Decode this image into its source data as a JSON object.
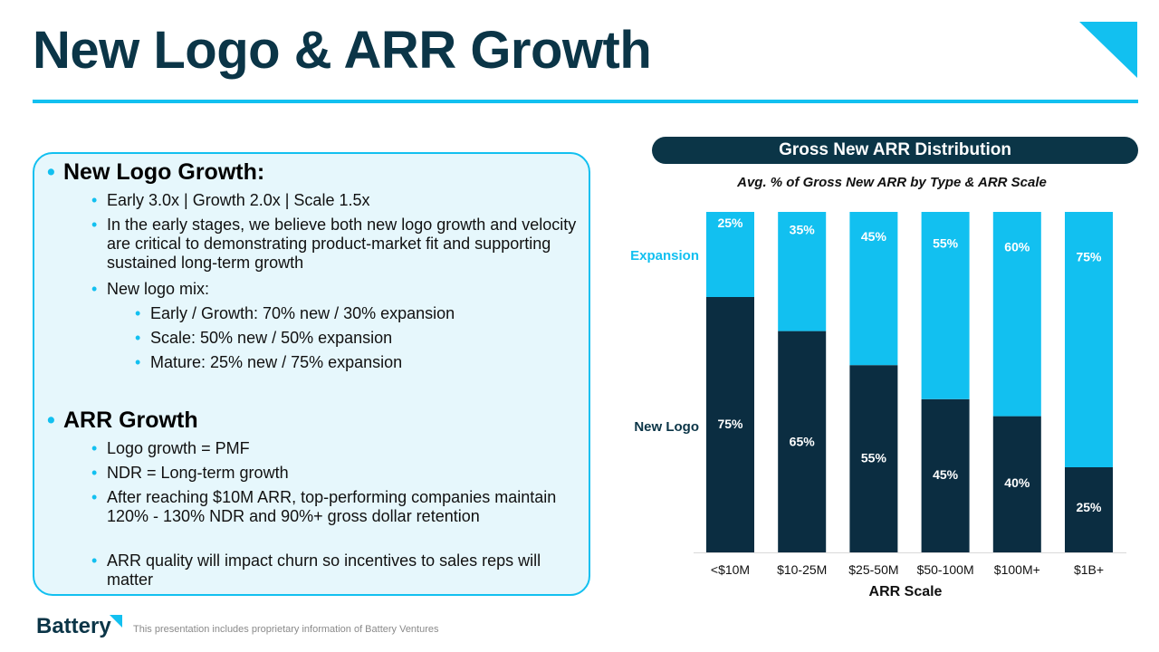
{
  "title": "New Logo & ARR Growth",
  "colors": {
    "accent": "#12c0f0",
    "navy": "#0b3547",
    "expansion": "#12c0f0",
    "new_logo": "#0b2d41"
  },
  "left_panel": {
    "section1": {
      "heading": "New Logo Growth:",
      "bullets": [
        "Early 3.0x | Growth 2.0x | Scale 1.5x",
        "In the early stages, we believe both new logo growth and velocity are critical to demonstrating product-market fit and supporting sustained long-term growth",
        "New logo mix:"
      ],
      "sub_bullets": [
        "Early / Growth: 70% new / 30% expansion",
        "Scale: 50% new / 50% expansion",
        "Mature: 25% new / 75% expansion"
      ]
    },
    "section2": {
      "heading": "ARR Growth",
      "bullets": [
        "Logo growth = PMF",
        "NDR = Long-term growth",
        "After reaching $10M ARR, top-performing companies maintain 120% - 130% NDR and 90%+ gross dollar retention",
        "ARR quality will impact churn so incentives to sales reps will matter"
      ]
    }
  },
  "chart_header": "Gross New ARR Distribution",
  "chart_data": {
    "type": "bar",
    "stacked": true,
    "percent": true,
    "title": "Avg. % of Gross New ARR by Type & ARR Scale",
    "xlabel": "ARR Scale",
    "ylabel": "",
    "categories": [
      "<$10M",
      "$10-25M",
      "$25-50M",
      "$50-100M",
      "$100M+",
      "$1B+"
    ],
    "series": [
      {
        "name": "New Logo",
        "values": [
          75,
          65,
          55,
          45,
          40,
          25
        ]
      },
      {
        "name": "Expansion",
        "values": [
          25,
          35,
          45,
          55,
          60,
          75
        ]
      }
    ],
    "ylim": [
      0,
      100
    ],
    "grid": false,
    "legend_placement": "left"
  },
  "footer": {
    "logo_text": "Battery",
    "note": "This presentation includes proprietary information of Battery Ventures"
  }
}
